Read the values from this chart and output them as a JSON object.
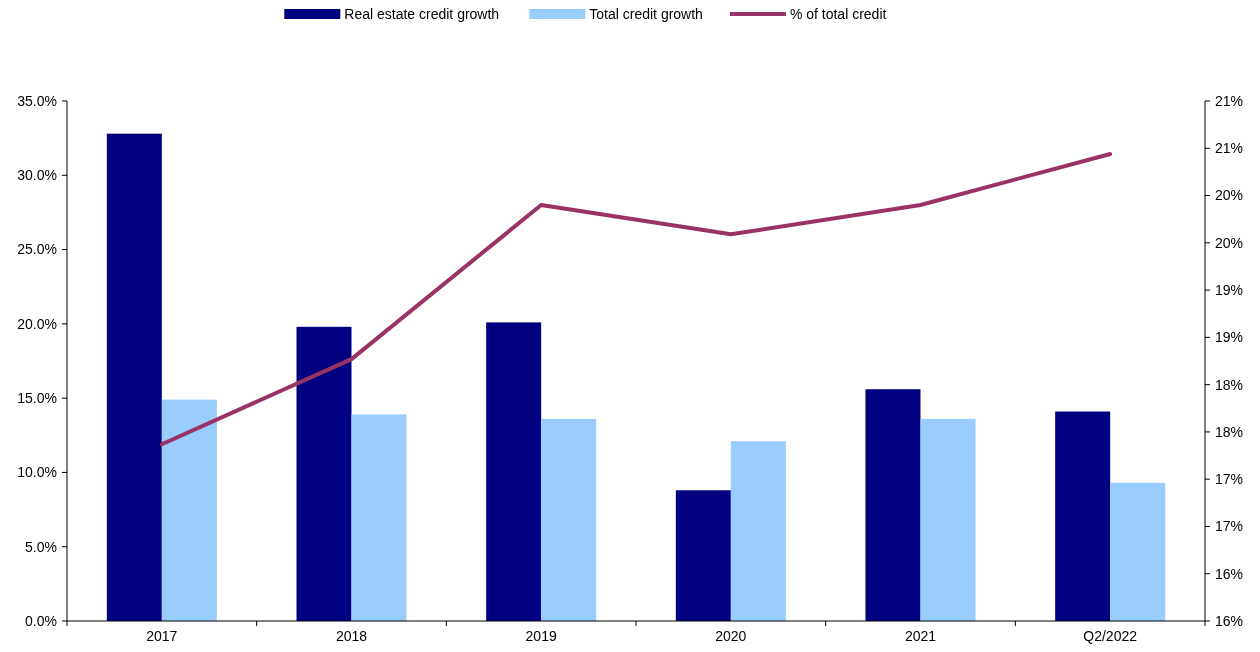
{
  "chart_data": {
    "type": "bar",
    "categories": [
      "2017",
      "2018",
      "2019",
      "2020",
      "2021",
      "Q2/2022"
    ],
    "series": [
      {
        "name": "Real estate credit growth",
        "color": "#000080",
        "values": [
          32.8,
          19.8,
          20.1,
          8.8,
          15.6,
          14.1
        ]
      },
      {
        "name": "Total credit growth",
        "color": "#99ccff",
        "values": [
          14.9,
          13.9,
          13.6,
          12.1,
          13.6,
          9.3
        ]
      },
      {
        "name": "% of total credit",
        "type": "line",
        "axis": "y2",
        "color": "#993366",
        "values": [
          17.37,
          18.27,
          19.9,
          19.59,
          19.9,
          20.44
        ]
      }
    ],
    "ylim": [
      0,
      35
    ],
    "yticks": [
      {
        "value": 0,
        "label": "0.0%"
      },
      {
        "value": 5,
        "label": "5.0%"
      },
      {
        "value": 10,
        "label": "10.0%"
      },
      {
        "value": 15,
        "label": "15.0%"
      },
      {
        "value": 20,
        "label": "20.0%"
      },
      {
        "value": 25,
        "label": "25.0%"
      },
      {
        "value": 30,
        "label": "30.0%"
      },
      {
        "value": 35,
        "label": "35.0%"
      }
    ],
    "y2lim": [
      15.5,
      21
    ],
    "y2ticks": [
      {
        "value": 15.5,
        "label": "16%"
      },
      {
        "value": 16,
        "label": "16%"
      },
      {
        "value": 16.5,
        "label": "17%"
      },
      {
        "value": 17,
        "label": "17%"
      },
      {
        "value": 17.5,
        "label": "18%"
      },
      {
        "value": 18,
        "label": "18%"
      },
      {
        "value": 18.5,
        "label": "19%"
      },
      {
        "value": 19,
        "label": "19%"
      },
      {
        "value": 19.5,
        "label": "20%"
      },
      {
        "value": 20,
        "label": "20%"
      },
      {
        "value": 20.5,
        "label": "21%"
      },
      {
        "value": 21,
        "label": "21%"
      }
    ],
    "legend": "top",
    "grid": false,
    "marker": "none",
    "line_style": "solid"
  }
}
